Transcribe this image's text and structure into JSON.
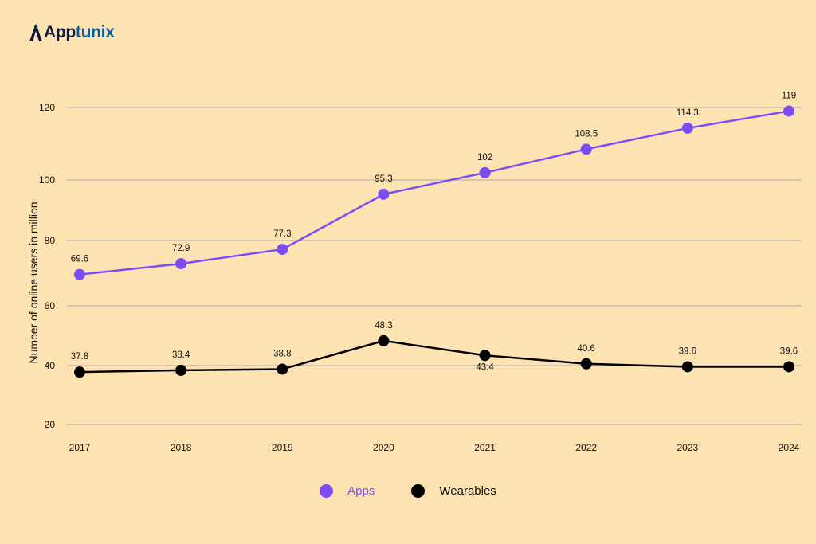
{
  "brand": {
    "name_part1": "App",
    "name_part2": "tunix",
    "color_dark": "#0E1A3C",
    "color_accent": "#0E5E9E"
  },
  "chart_data": {
    "type": "line",
    "x": [
      "2017",
      "2018",
      "2019",
      "2020",
      "2021",
      "2022",
      "2023",
      "2024"
    ],
    "ylabel": "Number of online users in million",
    "xlabel": "",
    "yticks": [
      20,
      40,
      60,
      80,
      100,
      120
    ],
    "ylim": [
      20,
      120
    ],
    "grid": true,
    "legend_position": "bottom-center",
    "series": [
      {
        "name": "Apps",
        "color": "#7B4DF7",
        "values": [
          69.6,
          72.9,
          77.3,
          95.3,
          102,
          108.5,
          114.3,
          119
        ],
        "labels": [
          "69.6",
          "72.9",
          "77.3",
          "95.3",
          "102",
          "108.5",
          "114.3",
          "119"
        ]
      },
      {
        "name": "Wearables",
        "color": "#000000",
        "values": [
          37.8,
          38.4,
          38.8,
          48.3,
          43.4,
          40.6,
          39.6,
          39.6
        ],
        "labels": [
          "37.8",
          "38.4",
          "38.8",
          "48.3",
          "43.4",
          "40.6",
          "39.6",
          "39.6"
        ]
      }
    ]
  }
}
